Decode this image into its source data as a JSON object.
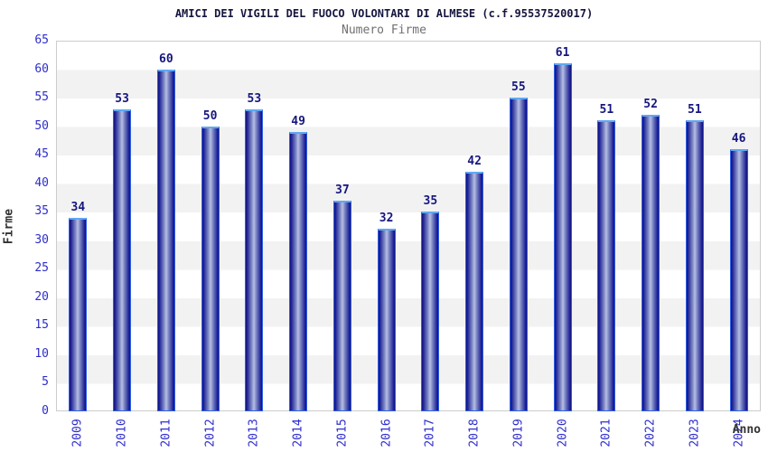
{
  "chart_data": {
    "type": "bar",
    "title": "AMICI DEI VIGILI DEL FUOCO VOLONTARI DI ALMESE (c.f.95537520017)",
    "subtitle": "Numero Firme",
    "xlabel": "Anno",
    "ylabel": "Firme",
    "categories": [
      "2009",
      "2010",
      "2011",
      "2012",
      "2013",
      "2014",
      "2015",
      "2016",
      "2017",
      "2018",
      "2019",
      "2020",
      "2021",
      "2022",
      "2023",
      "2024"
    ],
    "values": [
      34,
      53,
      60,
      50,
      53,
      49,
      37,
      32,
      35,
      42,
      55,
      61,
      51,
      52,
      51,
      46
    ],
    "ylim": [
      0,
      65
    ],
    "yticks": [
      0,
      5,
      10,
      15,
      20,
      25,
      30,
      35,
      40,
      45,
      50,
      55,
      60,
      65
    ],
    "grid": "alternating horizontal bands every 5 units",
    "legend": "none",
    "colors": {
      "title": "#15153f",
      "subtitle": "#707070",
      "tick_label": "#2d2dcc",
      "value_label": "#16167f",
      "axis_title": "#333333",
      "band_white": "#ffffff",
      "band_gray": "#f2f2f2",
      "plot_border": "#cccccc",
      "bar_edge": "#10107c",
      "bar_dark": "#26299a",
      "bar_mid": "#7a84c2",
      "bar_light": "#b6bee4",
      "bar_outline": "#2e5fe8",
      "bar_cap": "#5fa8f2"
    }
  }
}
